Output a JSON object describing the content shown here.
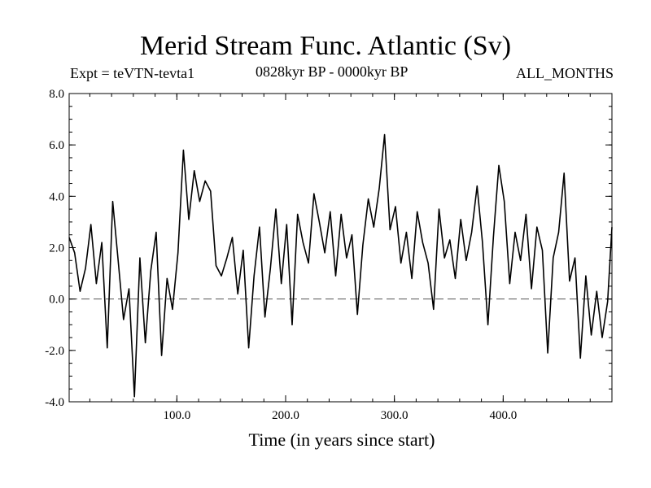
{
  "chart_data": {
    "type": "line",
    "title": "Merid Stream Func. Atlantic (Sv)",
    "subtitle_left": "Expt = teVTN-tevta1",
    "subtitle_center": "0828kyr BP - 0000kyr BP",
    "subtitle_right": "ALL_MONTHS",
    "xlabel": "Time (in years since start)",
    "ylabel": "",
    "xlim": [
      1,
      500
    ],
    "ylim": [
      -4.0,
      8.0
    ],
    "xticks": [
      100,
      200,
      300,
      400
    ],
    "xtick_labels": [
      "100.0",
      "200.0",
      "300.0",
      "400.0"
    ],
    "yticks": [
      -4,
      -2,
      0,
      2,
      4,
      6,
      8
    ],
    "ytick_labels": [
      "-4.0",
      "-2.0",
      "0.0",
      "2.0",
      "4.0",
      "6.0",
      "8.0"
    ],
    "reference_line": {
      "y": 0.0,
      "style": "dashed"
    },
    "series": [
      {
        "name": "Merid Stream Func. Atlantic",
        "x": [
          1,
          6,
          11,
          16,
          21,
          26,
          31,
          36,
          41,
          46,
          51,
          56,
          61,
          66,
          71,
          76,
          81,
          86,
          91,
          96,
          101,
          106,
          111,
          116,
          121,
          126,
          131,
          136,
          141,
          146,
          151,
          156,
          161,
          166,
          171,
          176,
          181,
          186,
          191,
          196,
          201,
          206,
          211,
          216,
          221,
          226,
          231,
          236,
          241,
          246,
          251,
          256,
          261,
          266,
          271,
          276,
          281,
          286,
          291,
          296,
          301,
          306,
          311,
          316,
          321,
          326,
          331,
          336,
          341,
          346,
          351,
          356,
          361,
          366,
          371,
          376,
          381,
          386,
          391,
          396,
          401,
          406,
          411,
          416,
          421,
          426,
          431,
          436,
          441,
          446,
          451,
          456,
          461,
          466,
          471,
          476,
          481,
          486,
          491,
          496,
          500
        ],
        "values": [
          2.4,
          1.8,
          0.3,
          1.2,
          2.9,
          0.6,
          2.2,
          -1.9,
          3.8,
          1.5,
          -0.8,
          0.4,
          -3.8,
          1.6,
          -1.7,
          1.1,
          2.6,
          -2.2,
          0.8,
          -0.4,
          1.8,
          5.8,
          3.1,
          5.0,
          3.8,
          4.6,
          4.2,
          1.3,
          0.9,
          1.6,
          2.4,
          0.2,
          1.9,
          -1.9,
          0.9,
          2.8,
          -0.7,
          1.2,
          3.5,
          0.6,
          2.9,
          -1.0,
          3.3,
          2.2,
          1.4,
          4.1,
          3.0,
          1.8,
          3.4,
          0.9,
          3.3,
          1.6,
          2.5,
          -0.6,
          2.1,
          3.9,
          2.8,
          4.3,
          6.4,
          2.7,
          3.6,
          1.4,
          2.6,
          0.8,
          3.4,
          2.2,
          1.4,
          -0.4,
          3.5,
          1.6,
          2.3,
          0.8,
          3.1,
          1.5,
          2.6,
          4.4,
          2.2,
          -1.0,
          2.4,
          5.2,
          3.8,
          0.6,
          2.6,
          1.5,
          3.3,
          0.4,
          2.8,
          1.9,
          -2.1,
          1.6,
          2.6,
          4.9,
          0.7,
          1.6,
          -2.3,
          0.9,
          -1.4,
          0.3,
          -1.5,
          -0.1,
          2.8
        ]
      }
    ]
  }
}
